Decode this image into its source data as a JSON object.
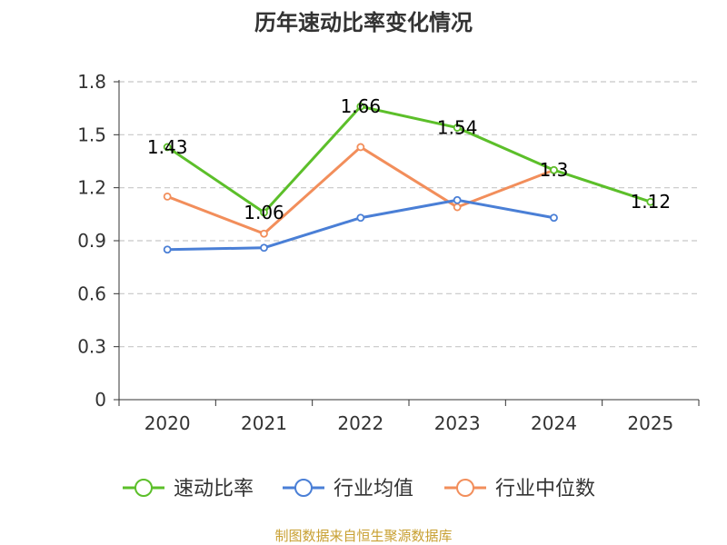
{
  "chart_data": {
    "type": "line",
    "title": "历年速动比率变化情况",
    "categories": [
      "2020",
      "2021",
      "2022",
      "2023",
      "2024",
      "2025"
    ],
    "y_ticks": [
      "0",
      "0.3",
      "0.6",
      "0.9",
      "1.2",
      "1.5",
      "1.8"
    ],
    "ylim": [
      0,
      1.8
    ],
    "grid": true,
    "legend_position": "bottom",
    "series": [
      {
        "name": "速动比率",
        "color": "#5cbf2a",
        "values": [
          1.43,
          1.06,
          1.66,
          1.54,
          1.3,
          1.12
        ],
        "labels": [
          "1.43",
          "1.06",
          "1.66",
          "1.54",
          "1.3",
          "1.12"
        ]
      },
      {
        "name": "行业均值",
        "color": "#4a7fd6",
        "values": [
          0.85,
          0.86,
          1.03,
          1.13,
          1.03,
          null
        ]
      },
      {
        "name": "行业中位数",
        "color": "#f28e5b",
        "values": [
          1.15,
          0.94,
          1.43,
          1.09,
          1.3,
          null
        ]
      }
    ],
    "source": "制图数据来自恒生聚源数据库"
  }
}
